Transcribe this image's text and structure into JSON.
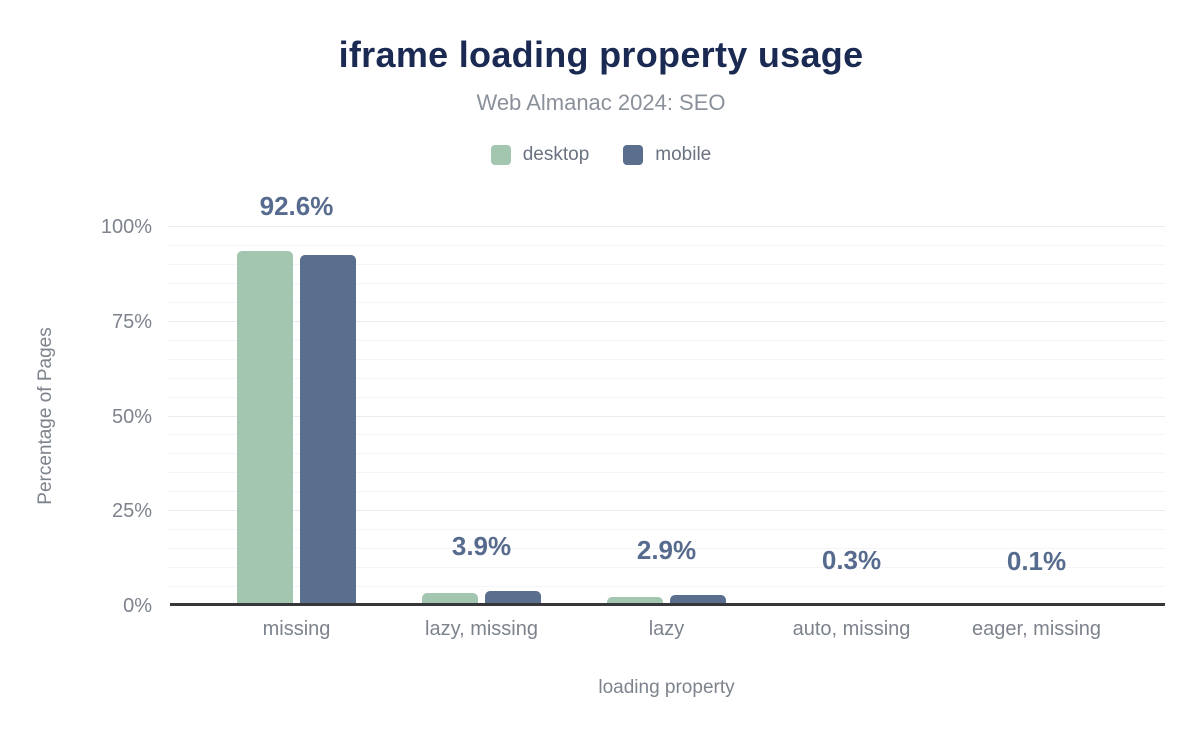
{
  "title": "iframe loading property usage",
  "subtitle": "Web Almanac 2024: SEO",
  "legend": [
    {
      "label": "desktop",
      "color": "#a3c6b1"
    },
    {
      "label": "mobile",
      "color": "#5a6e8e"
    }
  ],
  "colors": {
    "title": "#1b2a52",
    "subtitle_text": "#8b919b",
    "axis_text": "#7d838d",
    "legend_text": "#6b7280",
    "data_label": "#566b8d",
    "axis_line": "#37373a",
    "background": "#ffffff"
  },
  "chart_data": {
    "type": "bar",
    "title": "iframe loading property usage",
    "subtitle": "Web Almanac 2024: SEO",
    "xlabel": "loading property",
    "ylabel": "Percentage of Pages",
    "categories": [
      "missing",
      "lazy, missing",
      "lazy",
      "auto, missing",
      "eager, missing"
    ],
    "series": [
      {
        "name": "desktop",
        "color": "#a3c6b1",
        "values": [
          93.7,
          3.5,
          2.5,
          0.3,
          0.1
        ]
      },
      {
        "name": "mobile",
        "color": "#5a6e8e",
        "values": [
          92.6,
          3.9,
          2.9,
          0.3,
          0.1
        ]
      }
    ],
    "bar_labels": [
      "92.6%",
      "3.9%",
      "2.9%",
      "0.3%",
      "0.1%"
    ],
    "ylim": [
      0,
      100
    ],
    "yticks": [
      {
        "value": 0,
        "label": "0%"
      },
      {
        "value": 25,
        "label": "25%"
      },
      {
        "value": 50,
        "label": "50%"
      },
      {
        "value": 75,
        "label": "75%"
      },
      {
        "value": 100,
        "label": "100%"
      }
    ],
    "grid": {
      "minor_step": 5,
      "major_step": 25,
      "minor_color": "#f5f5f7",
      "major_color": "#ebebee"
    },
    "legend_position": "top"
  }
}
